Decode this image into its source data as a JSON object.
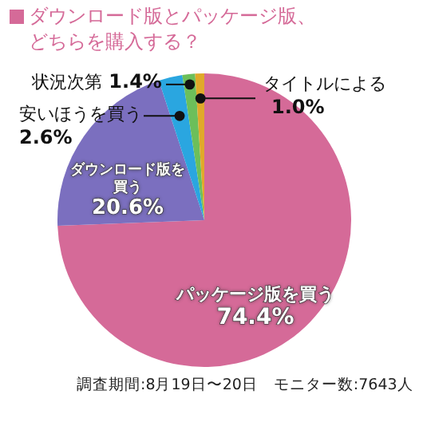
{
  "chart_data": {
    "type": "pie",
    "title": "ダウンロード版とパッケージ版、どちらを購入する？",
    "categories": [
      "パッケージ版を買う",
      "ダウンロード版を買う",
      "安いほうを買う",
      "状況次第",
      "タイトルによる"
    ],
    "values": [
      74.4,
      20.6,
      2.6,
      1.4,
      1.0
    ],
    "value_labels": [
      "74.4%",
      "20.6%",
      "2.6%",
      "1.4%",
      "1.0%"
    ],
    "colors": [
      "#d56a98",
      "#7b6fbf",
      "#2aa6e0",
      "#6cbf5a",
      "#e0a92a"
    ],
    "annotations": [
      "調査期間:8月19日〜20日　モニター数:7643人"
    ]
  }
}
